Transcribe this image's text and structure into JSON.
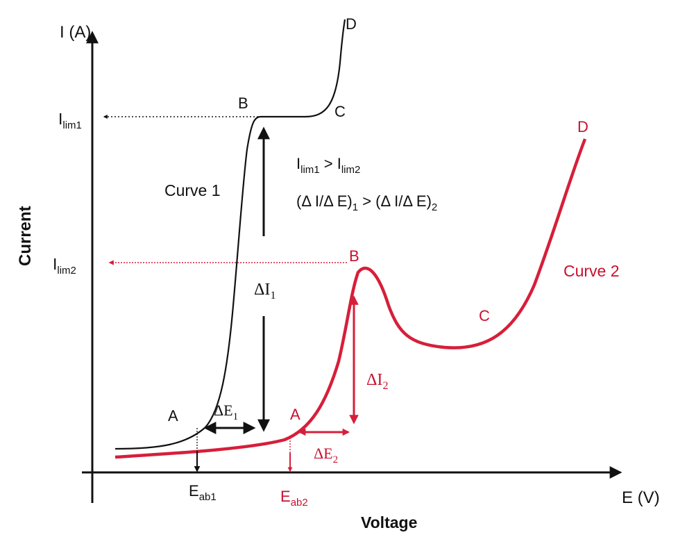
{
  "axes": {
    "y_axis_label": "I (A)",
    "x_axis_label": "E (V)",
    "y_title": "Current",
    "x_title": "Voltage"
  },
  "limits": {
    "ilim1": {
      "main": "I",
      "sub": "lim1"
    },
    "ilim2": {
      "main": "I",
      "sub": "lim2"
    }
  },
  "curve1": {
    "name": "Curve 1",
    "color": "#000000",
    "points": {
      "A": "A",
      "B": "B",
      "C": "C",
      "D": "D"
    },
    "eab": {
      "main": "E",
      "sub": "ab1"
    },
    "delta_i": {
      "main": "ΔI",
      "sub": "1"
    },
    "delta_e": {
      "main": "ΔE",
      "sub": "1"
    }
  },
  "curve2": {
    "name": "Curve 2",
    "color": "#c8102e",
    "points": {
      "A": "A",
      "B": "B",
      "C": "C",
      "D": "D"
    },
    "eab": {
      "main": "E",
      "sub": "ab2"
    },
    "delta_i": {
      "main": "ΔI",
      "sub": "2"
    },
    "delta_e": {
      "main": "ΔE",
      "sub": "2"
    }
  },
  "relations": {
    "r1": {
      "a": "I",
      "a_sub": "lim1",
      "op": " > ",
      "b": "I",
      "b_sub": "lim2"
    },
    "r2": {
      "a": "(Δ I/Δ E)",
      "a_sub": "1",
      "op": " > ",
      "b": "(Δ I/Δ E)",
      "b_sub": "2"
    }
  }
}
